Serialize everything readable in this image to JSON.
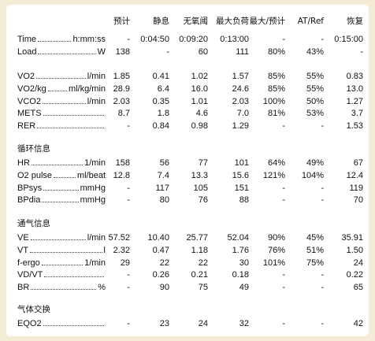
{
  "table": {
    "columns": [
      "预计",
      "静息",
      "无氧阈",
      "最大负荷",
      "最大/预计",
      "AT/Ref",
      "恢复"
    ],
    "groups": [
      {
        "rows": [
          {
            "label": "Time",
            "unit": "h:mm:ss",
            "cells": [
              "-",
              "0:04:50",
              "0:09:20",
              "0:13:00",
              "-",
              "-",
              "0:15:00"
            ]
          },
          {
            "label": "Load",
            "unit": "W",
            "cells": [
              "138",
              "-",
              "60",
              "111",
              "80%",
              "43%",
              "-"
            ]
          }
        ]
      },
      {
        "rows": [
          {
            "label": "VO2",
            "unit": "l/min",
            "cells": [
              "1.85",
              "0.41",
              "1.02",
              "1.57",
              "85%",
              "55%",
              "0.83"
            ]
          },
          {
            "label": "VO2/kg",
            "unit": "ml/kg/min",
            "cells": [
              "28.9",
              "6.4",
              "16.0",
              "24.6",
              "85%",
              "55%",
              "13.0"
            ]
          },
          {
            "label": "VCO2",
            "unit": "l/min",
            "cells": [
              "2.03",
              "0.35",
              "1.01",
              "2.03",
              "100%",
              "50%",
              "1.27"
            ]
          },
          {
            "label": "METS",
            "cells": [
              "8.7",
              "1.8",
              "4.6",
              "7.0",
              "81%",
              "53%",
              "3.7"
            ]
          },
          {
            "label": "RER",
            "cells": [
              "-",
              "0.84",
              "0.98",
              "1.29",
              "-",
              "-",
              "1.53"
            ]
          }
        ]
      },
      {
        "title": "循环信息",
        "rows": [
          {
            "label": "HR",
            "unit": "1/min",
            "cells": [
              "158",
              "56",
              "77",
              "101",
              "64%",
              "49%",
              "67"
            ]
          },
          {
            "label": "O2 pulse",
            "unit": "ml/beat",
            "cells": [
              "12.8",
              "7.4",
              "13.3",
              "15.6",
              "121%",
              "104%",
              "12.4"
            ]
          },
          {
            "label": "BPsys",
            "unit": "mmHg",
            "cells": [
              "-",
              "117",
              "105",
              "151",
              "-",
              "-",
              "119"
            ]
          },
          {
            "label": "BPdia",
            "unit": "mmHg",
            "cells": [
              "-",
              "80",
              "76",
              "88",
              "-",
              "-",
              "70"
            ]
          }
        ]
      },
      {
        "title": "通气信息",
        "rows": [
          {
            "label": "VE",
            "unit": "l/min",
            "cells": [
              "57.52",
              "10.40",
              "25.77",
              "52.04",
              "90%",
              "45%",
              "35.91"
            ]
          },
          {
            "label": "VT",
            "unit": "l",
            "cells": [
              "2.32",
              "0.47",
              "1.18",
              "1.76",
              "76%",
              "51%",
              "1.50"
            ]
          },
          {
            "label": "f-ergo",
            "unit": "1/min",
            "cells": [
              "29",
              "22",
              "22",
              "30",
              "101%",
              "75%",
              "24"
            ]
          },
          {
            "label": "VD/VT",
            "cells": [
              "-",
              "0.26",
              "0.21",
              "0.18",
              "-",
              "-",
              "0.22"
            ]
          },
          {
            "label": "BR",
            "unit": "%",
            "cells": [
              "-",
              "90",
              "75",
              "49",
              "-",
              "-",
              "65"
            ]
          }
        ]
      },
      {
        "title": "气体交换",
        "rows": [
          {
            "label": "EQO2",
            "cells": [
              "-",
              "23",
              "24",
              "32",
              "-",
              "-",
              "42"
            ]
          }
        ]
      }
    ]
  }
}
